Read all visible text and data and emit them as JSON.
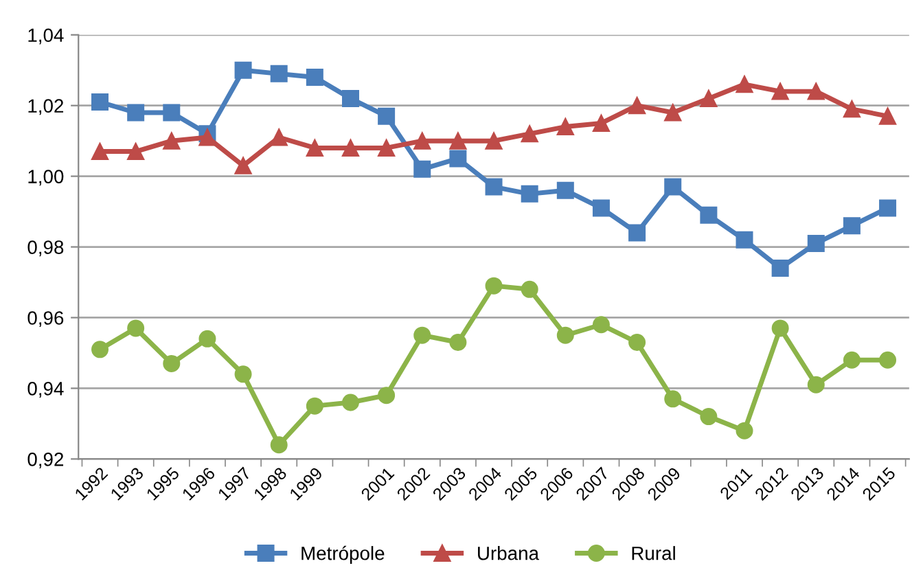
{
  "chart_data": {
    "type": "line",
    "categories": [
      "1992",
      "1993",
      "1995",
      "1996",
      "1997",
      "1998",
      "1999",
      null,
      "2001",
      "2002",
      "2003",
      "2004",
      "2005",
      "2006",
      "2007",
      "2008",
      "2009",
      null,
      "2011",
      "2012",
      "2013",
      "2014",
      "2015"
    ],
    "series": [
      {
        "name": "Metrópole",
        "color": "#4a7ebb",
        "marker": "square",
        "values": [
          1.021,
          1.018,
          1.018,
          1.012,
          1.03,
          1.029,
          1.028,
          1.022,
          1.017,
          1.002,
          1.005,
          0.997,
          0.995,
          0.996,
          0.991,
          0.984,
          0.997,
          0.989,
          0.982,
          0.974,
          0.981,
          0.986,
          0.991
        ]
      },
      {
        "name": "Urbana",
        "color": "#be4b48",
        "marker": "triangle",
        "values": [
          1.007,
          1.007,
          1.01,
          1.011,
          1.003,
          1.011,
          1.008,
          1.008,
          1.008,
          1.01,
          1.01,
          1.01,
          1.012,
          1.014,
          1.015,
          1.02,
          1.018,
          1.022,
          1.026,
          1.024,
          1.024,
          1.019,
          1.017
        ]
      },
      {
        "name": "Rural",
        "color": "#8cb449",
        "marker": "circle",
        "values": [
          0.951,
          0.957,
          0.947,
          0.954,
          0.944,
          0.924,
          0.935,
          0.936,
          0.938,
          0.955,
          0.953,
          0.969,
          0.968,
          0.955,
          0.958,
          0.953,
          0.937,
          0.932,
          0.928,
          0.957,
          0.941,
          0.948,
          0.948
        ]
      }
    ],
    "ylim": [
      0.92,
      1.04
    ],
    "yticks": [
      {
        "value": 0.92,
        "label": "0,92"
      },
      {
        "value": 0.94,
        "label": "0,94"
      },
      {
        "value": 0.96,
        "label": "0,96"
      },
      {
        "value": 0.98,
        "label": "0,98"
      },
      {
        "value": 1.0,
        "label": "1,00"
      },
      {
        "value": 1.02,
        "label": "1,02"
      },
      {
        "value": 1.04,
        "label": "1,04"
      }
    ],
    "grid": "y",
    "legend": "bottom",
    "line_style": "solid"
  }
}
